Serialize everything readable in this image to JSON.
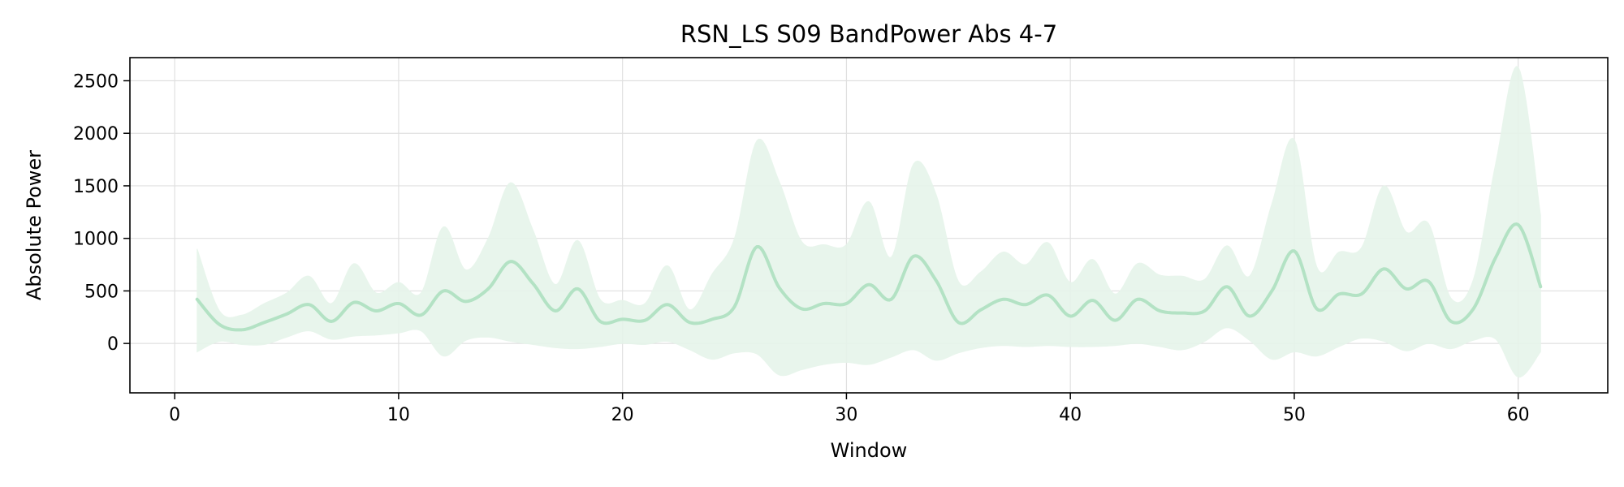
{
  "chart_data": {
    "type": "line",
    "title": "RSN_LS S09 BandPower Abs 4-7",
    "xlabel": "Window",
    "ylabel": "Absolute Power",
    "xlim": [
      -2,
      64
    ],
    "ylim": [
      -470,
      2720
    ],
    "xticks": [
      0,
      10,
      20,
      30,
      40,
      50,
      60
    ],
    "yticks": [
      0,
      500,
      1000,
      1500,
      2000,
      2500
    ],
    "grid": true,
    "legend": "none",
    "colors": {
      "line": "#b3e2c4",
      "band": "#e6f4ea",
      "grid": "#e0e0e0",
      "axes": "#000000"
    },
    "series": [
      {
        "x": [
          1,
          2,
          3,
          4,
          5,
          6,
          7,
          8,
          9,
          10,
          11,
          12,
          13,
          14,
          15,
          16,
          17,
          18,
          19,
          20,
          21,
          22,
          23,
          24,
          25,
          26,
          27,
          28,
          29,
          30,
          31,
          32,
          33,
          34,
          35,
          36,
          37,
          38,
          39,
          40,
          41,
          42,
          43,
          44,
          45,
          46,
          47,
          48,
          49,
          50,
          51,
          52,
          53,
          54,
          55,
          56,
          57,
          58,
          59,
          60,
          61
        ],
        "mean": [
          420,
          180,
          130,
          200,
          280,
          370,
          210,
          390,
          310,
          380,
          270,
          500,
          400,
          520,
          780,
          570,
          310,
          520,
          210,
          230,
          220,
          370,
          200,
          230,
          350,
          920,
          530,
          330,
          380,
          380,
          560,
          420,
          830,
          600,
          200,
          320,
          420,
          370,
          460,
          260,
          410,
          220,
          420,
          310,
          290,
          310,
          540,
          260,
          500,
          880,
          330,
          470,
          470,
          710,
          520,
          590,
          210,
          330,
          820,
          1130,
          540
        ],
        "lower": [
          -80,
          20,
          -10,
          -10,
          60,
          120,
          40,
          70,
          80,
          100,
          120,
          -120,
          30,
          60,
          20,
          -10,
          -40,
          -50,
          -30,
          0,
          -10,
          20,
          -60,
          -150,
          -90,
          -100,
          -300,
          -250,
          -200,
          -180,
          -200,
          -130,
          -60,
          -160,
          -90,
          -40,
          -20,
          -30,
          -20,
          -30,
          -30,
          -20,
          0,
          -30,
          -60,
          20,
          150,
          30,
          -150,
          -80,
          -120,
          -30,
          50,
          20,
          -70,
          0,
          -50,
          30,
          40,
          -320,
          -80
        ],
        "upper": [
          900,
          310,
          270,
          380,
          480,
          640,
          380,
          760,
          480,
          580,
          480,
          1110,
          700,
          1000,
          1530,
          1080,
          560,
          980,
          420,
          410,
          380,
          740,
          320,
          660,
          1000,
          1930,
          1540,
          970,
          940,
          940,
          1350,
          820,
          1710,
          1420,
          590,
          680,
          870,
          750,
          960,
          580,
          800,
          470,
          760,
          650,
          640,
          610,
          930,
          640,
          1330,
          1940,
          730,
          870,
          910,
          1500,
          1060,
          1140,
          430,
          610,
          1720,
          2630,
          1220
        ]
      }
    ]
  }
}
